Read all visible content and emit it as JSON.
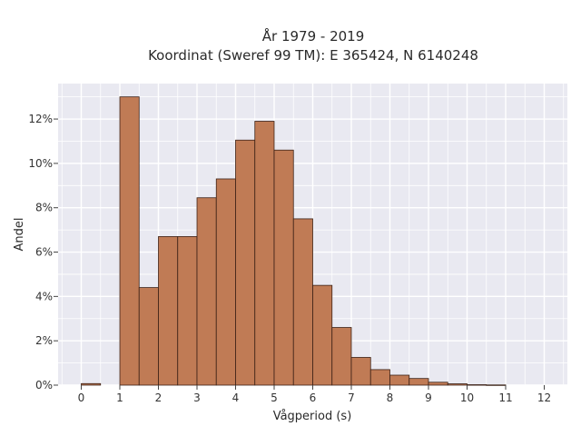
{
  "chart_data": {
    "type": "bar",
    "title_line1": "År 1979 - 2019",
    "title_line2": "Koordinat (Sweref 99 TM): E 365424, N 6140248",
    "xlabel": "Vågperiod (s)",
    "ylabel": "Andel",
    "bin_width": 0.5,
    "bins": [
      {
        "x0": 0.0,
        "x1": 0.5,
        "value": 0.0007
      },
      {
        "x0": 0.5,
        "x1": 1.0,
        "value": 0.0
      },
      {
        "x0": 1.0,
        "x1": 1.5,
        "value": 0.13
      },
      {
        "x0": 1.5,
        "x1": 2.0,
        "value": 0.044
      },
      {
        "x0": 2.0,
        "x1": 2.5,
        "value": 0.067
      },
      {
        "x0": 2.5,
        "x1": 3.0,
        "value": 0.067
      },
      {
        "x0": 3.0,
        "x1": 3.5,
        "value": 0.0845
      },
      {
        "x0": 3.5,
        "x1": 4.0,
        "value": 0.093
      },
      {
        "x0": 4.0,
        "x1": 4.5,
        "value": 0.1105
      },
      {
        "x0": 4.5,
        "x1": 5.0,
        "value": 0.119
      },
      {
        "x0": 5.0,
        "x1": 5.5,
        "value": 0.106
      },
      {
        "x0": 5.5,
        "x1": 6.0,
        "value": 0.075
      },
      {
        "x0": 6.0,
        "x1": 6.5,
        "value": 0.045
      },
      {
        "x0": 6.5,
        "x1": 7.0,
        "value": 0.026
      },
      {
        "x0": 7.0,
        "x1": 7.5,
        "value": 0.0125
      },
      {
        "x0": 7.5,
        "x1": 8.0,
        "value": 0.007
      },
      {
        "x0": 8.0,
        "x1": 8.5,
        "value": 0.0045
      },
      {
        "x0": 8.5,
        "x1": 9.0,
        "value": 0.003
      },
      {
        "x0": 9.0,
        "x1": 9.5,
        "value": 0.0013
      },
      {
        "x0": 9.5,
        "x1": 10.0,
        "value": 0.0006
      },
      {
        "x0": 10.0,
        "x1": 10.5,
        "value": 0.0002
      },
      {
        "x0": 10.5,
        "x1": 11.0,
        "value": 0.0001
      }
    ],
    "xlim": [
      -0.6,
      12.6
    ],
    "ylim": [
      0,
      0.136
    ],
    "x_ticks": [
      {
        "value": 0,
        "label": "0"
      },
      {
        "value": 1,
        "label": "1"
      },
      {
        "value": 2,
        "label": "2"
      },
      {
        "value": 3,
        "label": "3"
      },
      {
        "value": 4,
        "label": "4"
      },
      {
        "value": 5,
        "label": "5"
      },
      {
        "value": 6,
        "label": "6"
      },
      {
        "value": 7,
        "label": "7"
      },
      {
        "value": 8,
        "label": "8"
      },
      {
        "value": 9,
        "label": "9"
      },
      {
        "value": 10,
        "label": "10"
      },
      {
        "value": 11,
        "label": "11"
      },
      {
        "value": 12,
        "label": "12"
      }
    ],
    "y_ticks": [
      {
        "value": 0,
        "label": "0%"
      },
      {
        "value": 0.02,
        "label": "2%"
      },
      {
        "value": 0.04,
        "label": "4%"
      },
      {
        "value": 0.06,
        "label": "6%"
      },
      {
        "value": 0.08,
        "label": "8%"
      },
      {
        "value": 0.1,
        "label": "10%"
      },
      {
        "value": 0.12,
        "label": "12%"
      }
    ],
    "grid": true,
    "colors": {
      "plot_background": "#e9e9f1",
      "grid": "#ffffff",
      "bar_fill": "#c07b55",
      "bar_stroke": "#3b2116"
    }
  }
}
